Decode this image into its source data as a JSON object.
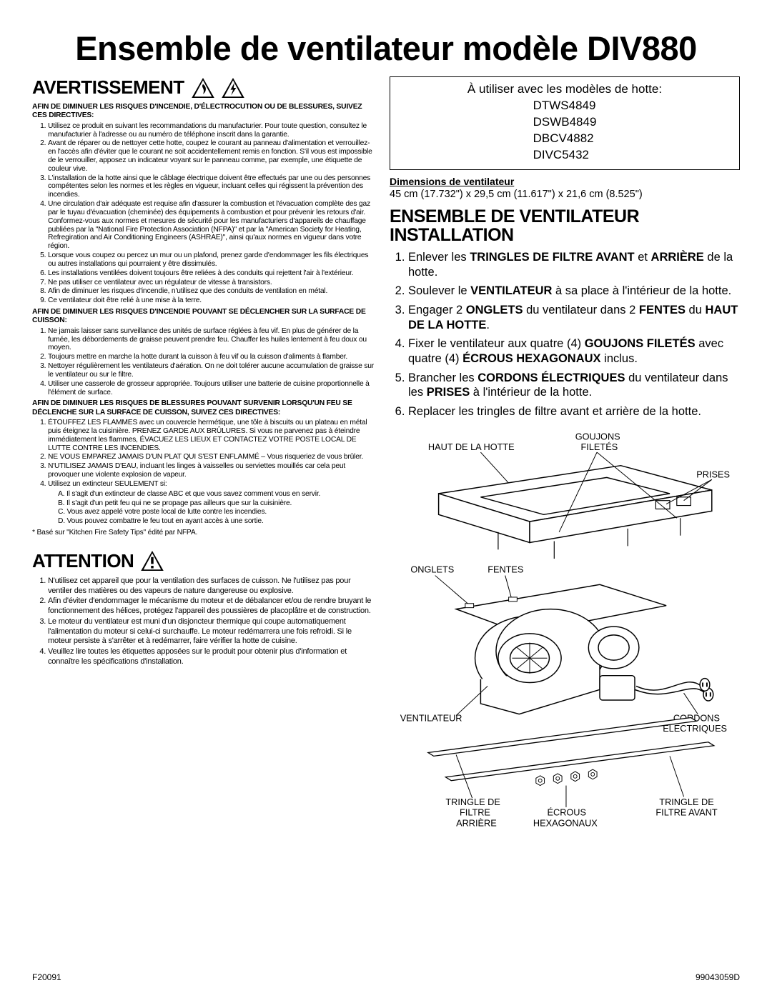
{
  "title": "Ensemble de ventilateur modèle DIV880",
  "avert_heading": "AVERTISSEMENT",
  "avert_intro": "AFIN DE DIMINUER LES RISQUES D'INCENDIE, D'ÉLECTROCUTION OU DE BLESSURES, SUIVEZ CES DIRECTIVES:",
  "avert_items": [
    "Utilisez ce produit en suivant les recommandations du manufacturier. Pour toute question, consultez le manufacturier à l'adresse ou au numéro de téléphone inscrit dans la garantie.",
    "Avant de réparer ou de nettoyer cette hotte, coupez le courant au panneau d'alimentation et verrouillez-en l'accès afin d'éviter que le courant ne soit accidentellement remis en fonction. S'il vous est impossible de le verrouiller, apposez un indicateur voyant sur le panneau comme, par exemple, une étiquette de couleur vive.",
    "L'installation de la hotte ainsi que le câblage électrique doivent être effectués par une ou des personnes compétentes selon les normes et les règles en vigueur, incluant celles qui régissent la prévention des incendies.",
    "Une circulation d'air adéquate est requise afin d'assurer la combustion et l'évacuation complète des gaz par le tuyau d'évacuation (cheminée) des équipements à combustion et pour prévenir les retours d'air. Conformez-vous aux normes et mesures de sécurité pour les manufacturiers d'appareils de chauffage publiées par la \"National Fire Protection Association (NFPA)\" et par la \"American Society for Heating, Refregiration and Air Conditioning Engineers (ASHRAE)\", ainsi qu'aux normes en vigueur dans votre région.",
    "Lorsque vous coupez ou percez un mur ou un plafond, prenez garde d'endommager les fils électriques ou autres installations qui pourraient y être dissimulés.",
    "Les installations ventilées doivent toujours être reliées à des conduits qui rejettent l'air à l'extérieur.",
    "Ne pas utiliser ce ventilateur avec un régulateur de vitesse à transistors.",
    "Afin de diminuer les risques d'incendie, n'utilisez que des conduits de ventilation en métal.",
    "Ce ventilateur doit être relié à une mise à la terre."
  ],
  "surface_intro": "AFIN DE DIMINUER LES RISQUES D'INCENDIE POUVANT SE DÉCLENCHER SUR LA SURFACE DE CUISSON:",
  "surface_items": [
    "Ne jamais laisser sans surveillance des unités de surface réglées à feu vif. En plus de générer de la fumée, les débordements de graisse peuvent prendre feu. Chauffer les huiles lentement à feu doux ou moyen.",
    "Toujours mettre en marche la hotte durant la cuisson à feu vif ou la cuisson d'aliments à flamber.",
    "Nettoyer régulièrement les ventilateurs d'aération. On ne doit tolérer aucune accumulation de graisse sur le ventilateur ou sur le filtre.",
    "Utiliser une casserole de grosseur appropriée. Toujours utiliser une batterie de cuisine proportionnelle à l'élément de surface."
  ],
  "fire_intro": "AFIN DE DIMINUER LES RISQUES DE BLESSURES POUVANT SURVENIR LORSQU'UN FEU SE DÉCLENCHE SUR LA SURFACE DE CUISSON, SUIVEZ CES DIRECTIVES:",
  "fire_items": [
    "ÉTOUFFEZ LES FLAMMES avec un couvercle hermétique, une tôle à biscuits ou un plateau en métal puis éteignez la cuisinière. PRENEZ GARDE AUX BRÛLURES. Si vous ne parvenez pas à éteindre immédiatement les flammes, ÉVACUEZ LES LIEUX ET CONTACTEZ VOTRE POSTE LOCAL DE LUTTE CONTRE LES INCENDIES.",
    "NE VOUS EMPAREZ JAMAIS D'UN PLAT QUI S'EST ENFLAMMÉ – Vous risqueriez de vous brûler.",
    "N'UTILISEZ JAMAIS D'EAU, incluant les linges à vaisselles ou serviettes mouillés car cela peut provoquer une violente explosion de vapeur.",
    "Utilisez un extincteur SEULEMENT si:"
  ],
  "fire_subitems": [
    "A. Il s'agit d'un extincteur de classe ABC et que vous savez comment vous en servir.",
    "B. Il s'agit d'un petit feu qui ne se propage pas ailleurs que sur la cuisinière.",
    "C. Vous avez appelé votre poste local de lutte contre les incendies.",
    "D. Vous pouvez combattre le feu tout en ayant accès à une sortie."
  ],
  "nfpa_note": "* Basé sur \"Kitchen Fire Safety Tips\" édité par NFPA.",
  "attention_heading": "ATTENTION",
  "attention_items": [
    "N'utilisez cet appareil que pour la ventilation des surfaces de cuisson. Ne l'utilisez pas pour ventiler des matières ou des vapeurs de nature dangereuse ou explosive.",
    "Afin d'éviter d'endommager le mécanisme du moteur et de débalancer et/ou de rendre bruyant le fonctionnement des hélices, protégez l'appareil des poussières de placoplâtre et de construction.",
    "Le moteur du ventilateur est muni d'un disjoncteur thermique qui coupe automatiquement l'alimentation du moteur si celui-ci surchauffe. Le moteur redémarrera une fois refroidi. Si le moteur persiste à s'arrêter et à redémarrer, faire vérifier la hotte de cuisine.",
    "Veuillez lire toutes les étiquettes apposées sur le produit pour obtenir plus d'information et connaître les spécifications d'installation."
  ],
  "box_intro": "À utiliser avec les modèles de hotte:",
  "models": [
    "DTWS4849",
    "DSWB4849",
    "DBCV4882",
    "DIVC5432"
  ],
  "dim_label": "Dimensions de ventilateur",
  "dim_text": "45 cm (17.732\") x 29,5 cm (11.617\") x 21,6 cm (8.525\")",
  "install_heading": "ENSEMBLE DE VENTILATEUR INSTALLATION",
  "install_items": [
    "Enlever les <b>TRINGLES DE FILTRE AVANT</b> et <b>ARRIÈRE</b> de la hotte.",
    "Soulever le <b>VENTILATEUR</b> à sa place à l'intérieur de la hotte.",
    "Engager 2 <b>ONGLETS</b> du ventilateur dans 2 <b>FENTES</b> du <b>HAUT DE LA HOTTE</b>.",
    "Fixer le ventilateur aux quatre (4) <b>GOUJONS FILETÉS</b> avec quatre (4) <b>ÉCROUS HEXAGONAUX</b> inclus.",
    "Brancher les <b>CORDONS ÉLECTRIQUES</b> du ventilateur dans les <b>PRISES</b> à l'intérieur de la hotte.",
    "Replacer les tringles de filtre avant et arrière de la hotte."
  ],
  "labels": {
    "haut": "HAUT DE LA HOTTE",
    "goujons": "GOUJONS\nFILETÉS",
    "prises": "PRISES",
    "onglets": "ONGLETS",
    "fentes": "FENTES",
    "ventilateur": "VENTILATEUR",
    "cordons": "CORDONS\nÉLECTRIQUES",
    "tringle_arr": "TRINGLE DE\nFILTRE\nARRIÈRE",
    "ecrous": "ÉCROUS\nHEXAGONAUX",
    "tringle_av": "TRINGLE DE\nFILTRE AVANT"
  },
  "footer_left": "F20091",
  "footer_right": "99043059D"
}
